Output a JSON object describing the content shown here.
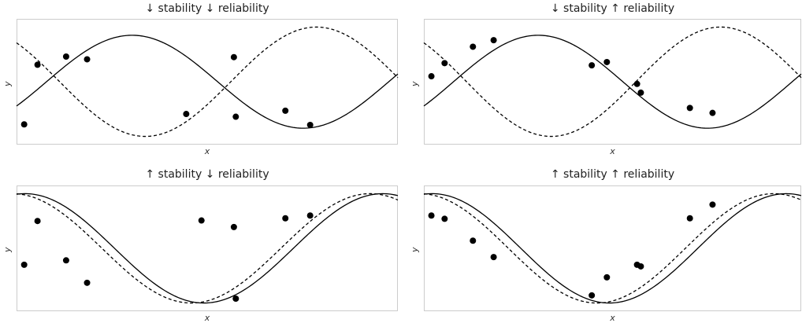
{
  "chart_data": [
    {
      "type": "line",
      "title": "↓ stability ↓ reliability",
      "xlabel": "x",
      "ylabel": "y",
      "xlim": [
        0,
        1
      ],
      "ylim": [
        -1.15,
        1.15
      ],
      "grid": false,
      "series": [
        {
          "style": "solid",
          "amplitude": 0.85,
          "omega": 7.0,
          "phase": -0.55,
          "color": "#000000"
        },
        {
          "style": "dashed",
          "amplitude": 1.0,
          "omega": 7.0,
          "phase": 2.35,
          "color": "#000000"
        }
      ],
      "points": [
        [
          0.02,
          -0.78
        ],
        [
          0.055,
          0.31
        ],
        [
          0.13,
          0.46
        ],
        [
          0.185,
          0.41
        ],
        [
          0.445,
          -0.59
        ],
        [
          0.57,
          0.45
        ],
        [
          0.575,
          -0.64
        ],
        [
          0.705,
          -0.53
        ],
        [
          0.77,
          -0.79
        ]
      ]
    },
    {
      "type": "line",
      "title": "↓ stability ↑ reliability",
      "xlabel": "x",
      "ylabel": "y",
      "xlim": [
        0,
        1
      ],
      "ylim": [
        -1.15,
        1.15
      ],
      "grid": false,
      "series": [
        {
          "style": "solid",
          "amplitude": 0.85,
          "omega": 7.0,
          "phase": -0.55,
          "color": "#000000"
        },
        {
          "style": "dashed",
          "amplitude": 1.0,
          "omega": 7.0,
          "phase": 2.35,
          "color": "#000000"
        }
      ],
      "points": [
        [
          0.02,
          0.1
        ],
        [
          0.055,
          0.34
        ],
        [
          0.13,
          0.64
        ],
        [
          0.185,
          0.76
        ],
        [
          0.445,
          0.3
        ],
        [
          0.485,
          0.36
        ],
        [
          0.565,
          -0.04
        ],
        [
          0.575,
          -0.2
        ],
        [
          0.705,
          -0.48
        ],
        [
          0.765,
          -0.57
        ]
      ]
    },
    {
      "type": "line",
      "title": "↑ stability ↓ reliability",
      "xlabel": "x",
      "ylabel": "y",
      "xlim": [
        0,
        1
      ],
      "ylim": [
        -1.15,
        1.15
      ],
      "grid": false,
      "series": [
        {
          "style": "solid",
          "amplitude": 1.0,
          "omega": 6.7,
          "phase": 1.42,
          "color": "#000000"
        },
        {
          "style": "dashed",
          "amplitude": 1.0,
          "omega": 6.7,
          "phase": 1.64,
          "color": "#000000"
        }
      ],
      "points": [
        [
          0.02,
          -0.3
        ],
        [
          0.055,
          0.5
        ],
        [
          0.13,
          -0.22
        ],
        [
          0.185,
          -0.63
        ],
        [
          0.485,
          0.51
        ],
        [
          0.57,
          0.39
        ],
        [
          0.575,
          -0.92
        ],
        [
          0.705,
          0.55
        ],
        [
          0.77,
          0.6
        ]
      ]
    },
    {
      "type": "line",
      "title": "↑ stability ↑ reliability",
      "xlabel": "x",
      "ylabel": "y",
      "xlim": [
        0,
        1
      ],
      "ylim": [
        -1.15,
        1.15
      ],
      "grid": false,
      "series": [
        {
          "style": "solid",
          "amplitude": 1.0,
          "omega": 6.7,
          "phase": 1.42,
          "color": "#000000"
        },
        {
          "style": "dashed",
          "amplitude": 1.0,
          "omega": 6.7,
          "phase": 1.64,
          "color": "#000000"
        }
      ],
      "points": [
        [
          0.02,
          0.6
        ],
        [
          0.055,
          0.54
        ],
        [
          0.13,
          0.14
        ],
        [
          0.185,
          -0.16
        ],
        [
          0.445,
          -0.86
        ],
        [
          0.485,
          -0.53
        ],
        [
          0.565,
          -0.3
        ],
        [
          0.575,
          -0.33
        ],
        [
          0.705,
          0.55
        ],
        [
          0.765,
          0.8
        ]
      ]
    }
  ]
}
